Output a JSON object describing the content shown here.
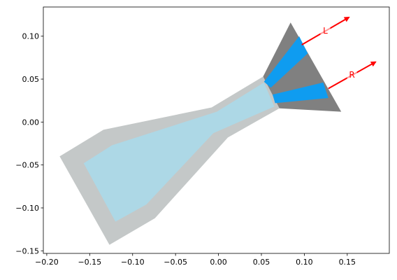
{
  "chart_data": {
    "type": "polygons",
    "xlim": [
      -0.204,
      0.199
    ],
    "ylim": [
      -0.153,
      0.134
    ],
    "xticks": [
      {
        "value": -0.2,
        "label": "−0.20"
      },
      {
        "value": -0.15,
        "label": "−0.15"
      },
      {
        "value": -0.1,
        "label": "−0.10"
      },
      {
        "value": -0.05,
        "label": "−0.05"
      },
      {
        "value": 0,
        "label": "0.00"
      },
      {
        "value": 0.05,
        "label": "0.05"
      },
      {
        "value": 0.1,
        "label": "0.10"
      },
      {
        "value": 0.15,
        "label": "0.15"
      }
    ],
    "yticks": [
      {
        "value": -0.15,
        "label": "−0.15"
      },
      {
        "value": -0.1,
        "label": "−0.10"
      },
      {
        "value": -0.05,
        "label": "−0.05"
      },
      {
        "value": 0,
        "label": "0.00"
      },
      {
        "value": 0.05,
        "label": "0.05"
      },
      {
        "value": 0.1,
        "label": "0.10"
      }
    ],
    "shapes": [
      {
        "color": "#c4c8c8",
        "x": [
          -0.185,
          -0.134,
          -0.008,
          0.052,
          0.071,
          0.011,
          -0.074,
          -0.127
        ],
        "y": [
          -0.04,
          -0.009,
          0.017,
          0.053,
          0.016,
          -0.018,
          -0.112,
          -0.143
        ]
      },
      {
        "color": "#add8e6",
        "x": [
          -0.157,
          -0.124,
          -0.002,
          0.053,
          0.065,
          -0.006,
          -0.084,
          -0.12
        ],
        "y": [
          -0.048,
          -0.027,
          0.012,
          0.046,
          0.018,
          -0.013,
          -0.096,
          -0.116
        ]
      },
      {
        "color": "#808080",
        "x": [
          0.052,
          0.084,
          0.143,
          0.071
        ],
        "y": [
          0.053,
          0.116,
          0.012,
          0.016
        ]
      },
      {
        "color": "#0f9cf0",
        "x": [
          0.053,
          0.094,
          0.104,
          0.061
        ],
        "y": [
          0.047,
          0.1,
          0.08,
          0.04
        ]
      },
      {
        "color": "#0f9cf0",
        "x": [
          0.063,
          0.122,
          0.128,
          0.066
        ],
        "y": [
          0.032,
          0.046,
          0.028,
          0.022
        ]
      }
    ],
    "arrows": [
      {
        "label": "L",
        "color": "#ff0000",
        "x": [
          0.097,
          0.152
        ],
        "y": [
          0.09,
          0.122
        ]
      },
      {
        "label": "R",
        "color": "#ff0000",
        "x": [
          0.128,
          0.183
        ],
        "y": [
          0.039,
          0.07
        ]
      }
    ]
  }
}
